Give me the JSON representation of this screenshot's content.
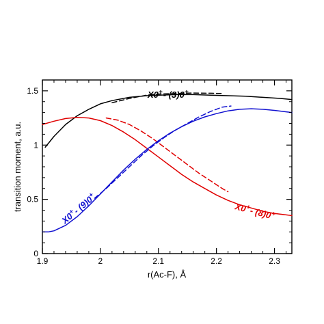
{
  "chart_data": {
    "type": "line",
    "title": "",
    "xlabel": "r(Ac-F), Å",
    "ylabel": "transition moment, a.u.",
    "xlim": [
      1.9,
      2.33
    ],
    "ylim": [
      0,
      1.6
    ],
    "xticks": [
      1.9,
      2,
      2.1,
      2.2,
      2.3
    ],
    "xtick_labels": [
      "1.9",
      "2",
      "2.1",
      "2.2",
      "2.3"
    ],
    "yticks": [
      0,
      0.5,
      1,
      1.5
    ],
    "ytick_labels": [
      "0",
      "0.5",
      "1",
      "1.5"
    ],
    "grid": false,
    "series": [
      {
        "annotation_id": "a1",
        "color": "#000000",
        "dash": false,
        "x": [
          1.905,
          1.92,
          1.94,
          1.96,
          1.98,
          2.0,
          2.02,
          2.05,
          2.08,
          2.1,
          2.13,
          2.16,
          2.19,
          2.22,
          2.25,
          2.28,
          2.31,
          2.33
        ],
        "y": [
          0.98,
          1.08,
          1.19,
          1.27,
          1.33,
          1.38,
          1.41,
          1.44,
          1.455,
          1.46,
          1.465,
          1.465,
          1.46,
          1.455,
          1.45,
          1.44,
          1.43,
          1.42
        ]
      },
      {
        "annotation_id": "a1",
        "color": "#000000",
        "dash": true,
        "x": [
          2.02,
          2.05,
          2.08,
          2.1,
          2.13,
          2.16,
          2.19,
          2.21
        ],
        "y": [
          1.39,
          1.43,
          1.46,
          1.47,
          1.475,
          1.48,
          1.478,
          1.475
        ]
      },
      {
        "annotation_id": "a2",
        "color": "#e00000",
        "dash": false,
        "x": [
          1.9,
          1.92,
          1.94,
          1.96,
          1.98,
          2.0,
          2.02,
          2.04,
          2.06,
          2.08,
          2.1,
          2.12,
          2.14,
          2.16,
          2.18,
          2.2,
          2.22,
          2.24,
          2.26,
          2.28,
          2.3,
          2.33
        ],
        "y": [
          1.19,
          1.22,
          1.245,
          1.255,
          1.25,
          1.225,
          1.18,
          1.12,
          1.05,
          0.97,
          0.89,
          0.81,
          0.73,
          0.66,
          0.6,
          0.54,
          0.49,
          0.45,
          0.42,
          0.39,
          0.37,
          0.35
        ]
      },
      {
        "annotation_id": "a2",
        "color": "#e00000",
        "dash": true,
        "x": [
          2.01,
          2.03,
          2.05,
          2.07,
          2.09,
          2.11,
          2.13,
          2.15,
          2.17,
          2.19,
          2.21,
          2.22
        ],
        "y": [
          1.25,
          1.23,
          1.19,
          1.13,
          1.06,
          0.98,
          0.9,
          0.82,
          0.74,
          0.67,
          0.6,
          0.57
        ]
      },
      {
        "annotation_id": "a3",
        "color": "#1010d0",
        "dash": false,
        "x": [
          1.9,
          1.91,
          1.92,
          1.94,
          1.96,
          1.98,
          2.0,
          2.02,
          2.04,
          2.06,
          2.08,
          2.1,
          2.12,
          2.14,
          2.16,
          2.18,
          2.2,
          2.22,
          2.24,
          2.26,
          2.28,
          2.3,
          2.33
        ],
        "y": [
          0.2,
          0.2,
          0.21,
          0.26,
          0.34,
          0.44,
          0.55,
          0.66,
          0.77,
          0.87,
          0.96,
          1.04,
          1.11,
          1.17,
          1.22,
          1.26,
          1.29,
          1.315,
          1.33,
          1.335,
          1.33,
          1.32,
          1.3
        ]
      },
      {
        "annotation_id": "a3",
        "color": "#1010d0",
        "dash": true,
        "x": [
          1.99,
          2.01,
          2.03,
          2.05,
          2.07,
          2.09,
          2.11,
          2.13,
          2.15,
          2.17,
          2.19,
          2.21,
          2.225
        ],
        "y": [
          0.51,
          0.6,
          0.7,
          0.8,
          0.9,
          0.99,
          1.07,
          1.14,
          1.2,
          1.26,
          1.31,
          1.35,
          1.36
        ]
      }
    ],
    "annotations": [
      {
        "id": "a1",
        "base": "X0",
        "sup1": "+",
        "mid": "- (3)0",
        "sup2": "+",
        "color": "#000000"
      },
      {
        "id": "a2",
        "base": "X0",
        "sup1": "+",
        "mid": "- (8)0",
        "sup2": "+",
        "color": "#e00000"
      },
      {
        "id": "a3",
        "base": "X0",
        "sup1": "+",
        "mid": "- (9)0",
        "sup2": "+",
        "color": "#1010d0"
      }
    ]
  }
}
